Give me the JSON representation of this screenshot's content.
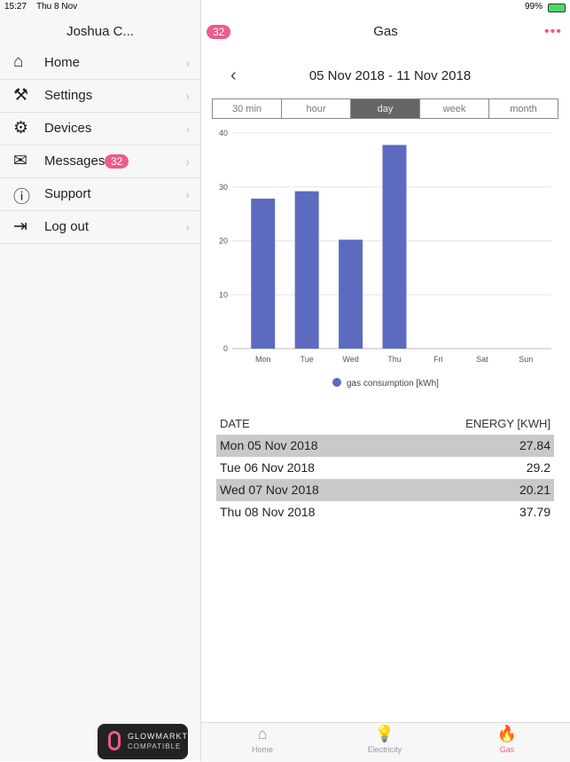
{
  "status_bar": {
    "time": "15:27",
    "date": "Thu 8 Nov",
    "battery": "99%"
  },
  "sidebar": {
    "user": "Joshua C...",
    "menu": [
      "Home",
      "Settings",
      "Devices",
      "Messages",
      "Support",
      "Log out"
    ],
    "messages_badge": 32
  },
  "logo": {
    "line1": "GLOWMARKT",
    "line2": "COMPATIBLE"
  },
  "header": {
    "badge": 32,
    "title": "Gas"
  },
  "date_range": "05 Nov 2018 - 11 Nov 2018",
  "tabs": {
    "items": [
      "30 min",
      "hour",
      "day",
      "week",
      "month"
    ],
    "active": 2
  },
  "chart_data": {
    "type": "bar",
    "categories": [
      "Mon",
      "Tue",
      "Wed",
      "Thu",
      "Fri",
      "Sat",
      "Sun"
    ],
    "series": [
      {
        "name": "gas consumption [kWh]",
        "color": "#5c6bc0",
        "values": [
          27.84,
          29.2,
          20.21,
          37.79,
          null,
          null,
          null
        ]
      }
    ],
    "ylim": [
      0,
      40
    ],
    "yticks": [
      0,
      10,
      20,
      30,
      40
    ],
    "grid": true
  },
  "table": {
    "columns": [
      "DATE",
      "ENERGY [KWH]"
    ],
    "rows": [
      [
        "Mon 05 Nov 2018",
        27.84
      ],
      [
        "Tue 06 Nov 2018",
        29.2
      ],
      [
        "Wed 07 Nov 2018",
        20.21
      ],
      [
        "Thu 08 Nov 2018",
        37.79
      ]
    ]
  },
  "tab_bar": {
    "items": [
      "Home",
      "Electricity",
      "Gas"
    ],
    "active": 2
  }
}
